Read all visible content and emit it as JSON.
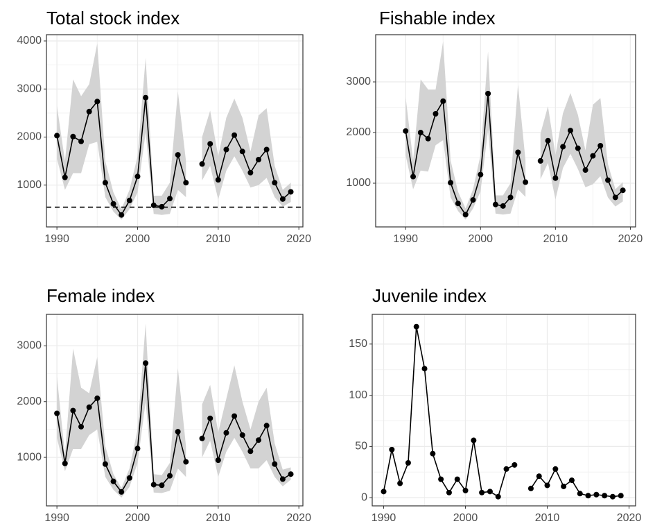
{
  "chart_data": [
    {
      "type": "line",
      "title": "Total stock index",
      "x": [
        1990,
        1991,
        1992,
        1993,
        1994,
        1995,
        1996,
        1997,
        1998,
        1999,
        2000,
        2001,
        2002,
        2003,
        2004,
        2005,
        2006,
        2007,
        2008,
        2009,
        2010,
        2011,
        2012,
        2013,
        2014,
        2015,
        2016,
        2017,
        2018,
        2019
      ],
      "series": [
        {
          "color": "#000000",
          "values": [
            2030,
            1160,
            2010,
            1910,
            2530,
            2740,
            1050,
            610,
            380,
            680,
            1180,
            2820,
            580,
            550,
            720,
            1630,
            1050,
            null,
            1440,
            1860,
            1110,
            1740,
            2040,
            1700,
            1260,
            1530,
            1740,
            1050,
            710,
            860
          ]
        }
      ],
      "band": {
        "color": "#d3d3d3",
        "lower": [
          1550,
          900,
          1250,
          1250,
          1850,
          1900,
          750,
          450,
          280,
          500,
          850,
          2100,
          400,
          380,
          400,
          900,
          750,
          null,
          1100,
          1400,
          700,
          1300,
          1600,
          1300,
          950,
          1000,
          1150,
          750,
          550,
          650
        ],
        "upper": [
          2650,
          1500,
          3200,
          2850,
          3100,
          3950,
          1500,
          850,
          500,
          900,
          1600,
          3650,
          780,
          780,
          1050,
          2950,
          1500,
          null,
          2000,
          2550,
          1600,
          2400,
          2800,
          2400,
          1700,
          2450,
          2600,
          1400,
          900,
          1050
        ]
      },
      "hline": {
        "value": 540,
        "style": "dashed",
        "color": "#000000"
      },
      "xlim": [
        1988.7,
        2020.5
      ],
      "xticks": [
        1990,
        2000,
        2010,
        2020
      ],
      "ylim": [
        130,
        4130
      ],
      "yticks": [
        1000,
        2000,
        3000,
        4000
      ],
      "grid": true
    },
    {
      "type": "line",
      "title": "Fishable index",
      "x": [
        1990,
        1991,
        1992,
        1993,
        1994,
        1995,
        1996,
        1997,
        1998,
        1999,
        2000,
        2001,
        2002,
        2003,
        2004,
        2005,
        2006,
        2007,
        2008,
        2009,
        2010,
        2011,
        2012,
        2013,
        2014,
        2015,
        2016,
        2017,
        2018,
        2019
      ],
      "series": [
        {
          "color": "#000000",
          "values": [
            2030,
            1130,
            2000,
            1880,
            2370,
            2620,
            1010,
            600,
            380,
            670,
            1170,
            2770,
            580,
            550,
            720,
            1610,
            1020,
            null,
            1440,
            1840,
            1100,
            1720,
            2040,
            1690,
            1260,
            1540,
            1740,
            1060,
            720,
            860
          ]
        }
      ],
      "band": {
        "color": "#d3d3d3",
        "lower": [
          1550,
          880,
          1250,
          1230,
          1750,
          1850,
          720,
          450,
          280,
          500,
          840,
          2050,
          400,
          380,
          400,
          880,
          730,
          null,
          1080,
          1400,
          680,
          1300,
          1580,
          1280,
          920,
          980,
          1140,
          720,
          540,
          640
        ],
        "upper": [
          2700,
          1450,
          3050,
          2850,
          2850,
          3800,
          1450,
          830,
          500,
          880,
          1560,
          3600,
          760,
          760,
          1000,
          2950,
          1450,
          null,
          1980,
          2520,
          1560,
          2380,
          2780,
          2350,
          1650,
          2550,
          2680,
          1380,
          880,
          1020
        ]
      },
      "xlim": [
        1986.0,
        2020.7
      ],
      "xticks": [
        1990,
        2000,
        2010,
        2020
      ],
      "ylim": [
        137,
        3932
      ],
      "yticks": [
        1000,
        2000,
        3000
      ],
      "grid": true
    },
    {
      "type": "line",
      "title": "Female index",
      "x": [
        1990,
        1991,
        1992,
        1993,
        1994,
        1995,
        1996,
        1997,
        1998,
        1999,
        2000,
        2001,
        2002,
        2003,
        2004,
        2005,
        2006,
        2007,
        2008,
        2009,
        2010,
        2011,
        2012,
        2013,
        2014,
        2015,
        2016,
        2017,
        2018,
        2019
      ],
      "series": [
        {
          "color": "#000000",
          "values": [
            1790,
            890,
            1840,
            1550,
            1900,
            2060,
            880,
            570,
            380,
            630,
            1160,
            2690,
            510,
            500,
            670,
            1460,
            920,
            null,
            1340,
            1700,
            950,
            1440,
            1740,
            1400,
            1110,
            1310,
            1570,
            880,
            610,
            700
          ]
        }
      ],
      "band": {
        "color": "#d3d3d3",
        "lower": [
          1350,
          750,
          1150,
          1150,
          1400,
          1500,
          650,
          420,
          280,
          470,
          900,
          2000,
          370,
          360,
          400,
          800,
          650,
          null,
          1000,
          1300,
          650,
          1100,
          1350,
          1100,
          800,
          800,
          950,
          650,
          480,
          600
        ],
        "upper": [
          2450,
          1050,
          2950,
          2250,
          2150,
          2800,
          1200,
          700,
          450,
          800,
          1500,
          3400,
          700,
          680,
          900,
          2600,
          1200,
          null,
          1950,
          2300,
          1450,
          2050,
          2650,
          2000,
          1500,
          2000,
          2250,
          1250,
          780,
          820
        ]
      },
      "xlim": [
        1988.7,
        2020.5
      ],
      "xticks": [
        1990,
        2000,
        2010,
        2020
      ],
      "ylim": [
        130,
        3565
      ],
      "yticks": [
        1000,
        2000,
        3000
      ],
      "grid": true
    },
    {
      "type": "line",
      "title": "Juvenile index",
      "x": [
        1990,
        1991,
        1992,
        1993,
        1994,
        1995,
        1996,
        1997,
        1998,
        1999,
        2000,
        2001,
        2002,
        2003,
        2004,
        2005,
        2006,
        2007,
        2008,
        2009,
        2010,
        2011,
        2012,
        2013,
        2014,
        2015,
        2016,
        2017,
        2018,
        2019
      ],
      "series": [
        {
          "color": "#000000",
          "values": [
            6,
            47,
            14,
            34,
            167,
            126,
            43,
            18,
            5,
            18,
            7,
            56,
            5,
            6,
            1,
            28,
            32,
            null,
            9,
            21,
            12,
            28,
            11,
            17,
            4,
            2,
            3,
            2,
            1,
            2
          ]
        }
      ],
      "xlim": [
        1988.6,
        2020.8
      ],
      "xticks": [
        1990,
        2000,
        2010,
        2020
      ],
      "ylim": [
        -8,
        179
      ],
      "yticks": [
        0,
        50,
        100,
        150
      ],
      "grid": true
    }
  ]
}
